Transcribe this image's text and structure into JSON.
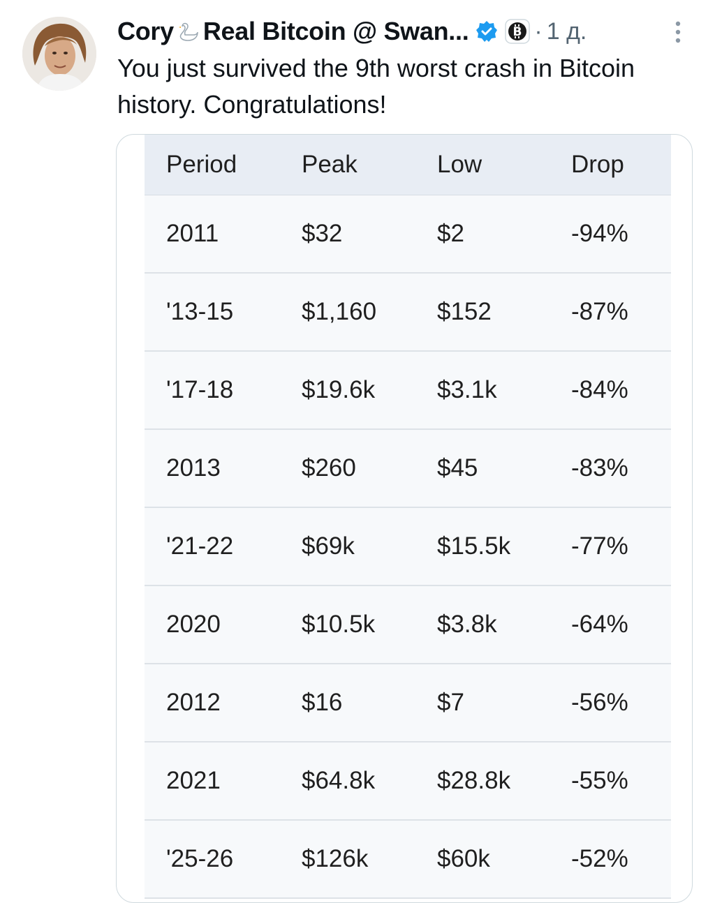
{
  "tweet": {
    "display_name": "Cory",
    "display_name_suffix": "Real Bitcoin @ Swan...",
    "separator": "·",
    "timestamp": "1 д.",
    "text": "You just survived the 9th worst crash in Bitcoin history.  Congratulations!",
    "icons": {
      "swan": "swan-emoji-icon",
      "verified": "verified-badge-icon",
      "affiliate": "bitcoin-badge-icon",
      "more": "more-options-icon"
    },
    "colors": {
      "verified": "#1d9bf0",
      "muted_text": "#536471",
      "table_header_bg": "#e8edf4",
      "table_row_bg": "#f7f9fb"
    }
  },
  "table": {
    "headers": [
      "Period",
      "Peak",
      "Low",
      "Drop"
    ],
    "rows": [
      [
        "2011",
        "$32",
        "$2",
        "-94%"
      ],
      [
        "'13-15",
        "$1,160",
        "$152",
        "-87%"
      ],
      [
        "'17-18",
        "$19.6k",
        "$3.1k",
        "-84%"
      ],
      [
        "2013",
        "$260",
        "$45",
        "-83%"
      ],
      [
        "'21-22",
        "$69k",
        "$15.5k",
        "-77%"
      ],
      [
        "2020",
        "$10.5k",
        "$3.8k",
        "-64%"
      ],
      [
        "2012",
        "$16",
        "$7",
        "-56%"
      ],
      [
        "2021",
        "$64.8k",
        "$28.8k",
        "-55%"
      ],
      [
        "'25-26",
        "$126k",
        "$60k",
        "-52%"
      ]
    ]
  }
}
